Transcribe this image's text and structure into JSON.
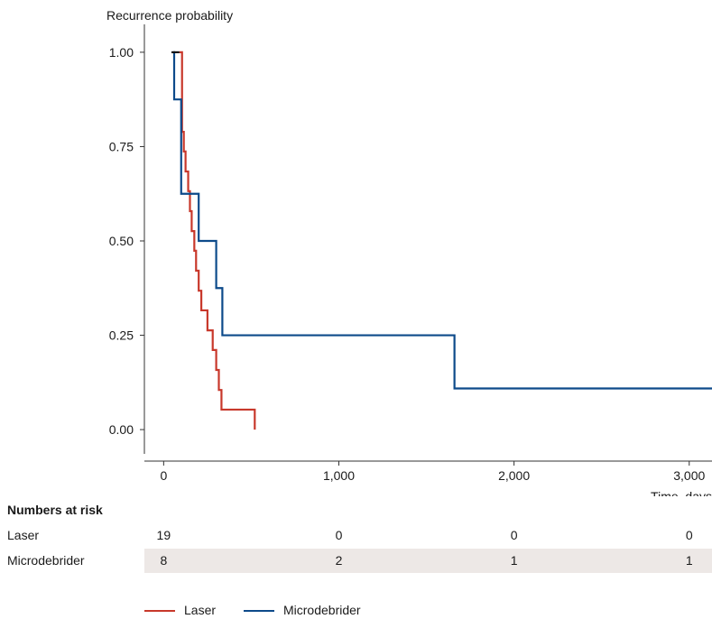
{
  "chart_data": {
    "type": "line",
    "subtype": "step",
    "ylabel": "Recurrence probability",
    "xlabel": "Time, days",
    "xlim": [
      -110,
      3130
    ],
    "ylim": [
      -0.05,
      1.05
    ],
    "xticks": [
      0,
      1000,
      2000,
      3000
    ],
    "xtick_labels": [
      "0",
      "1,000",
      "2,000",
      "3,000"
    ],
    "yticks": [
      0,
      0.25,
      0.5,
      0.75,
      1.0
    ],
    "ytick_labels": [
      "0.00",
      "0.25",
      "0.50",
      "0.75",
      "1.00"
    ],
    "series": [
      {
        "name": "Laser",
        "color": "#c8382b",
        "x": [
          90,
          105,
          115,
          125,
          140,
          150,
          160,
          175,
          185,
          200,
          215,
          250,
          280,
          300,
          315,
          330,
          520
        ],
        "y": [
          1.0,
          0.789,
          0.737,
          0.684,
          0.632,
          0.579,
          0.526,
          0.474,
          0.421,
          0.368,
          0.316,
          0.263,
          0.211,
          0.158,
          0.105,
          0.053,
          0.0
        ]
      },
      {
        "name": "Microdebrider",
        "color": "#0d4a8a",
        "x": [
          55,
          60,
          100,
          110,
          200,
          300,
          335,
          1660,
          3130
        ],
        "y": [
          1.0,
          0.875,
          0.625,
          0.625,
          0.5,
          0.375,
          0.25,
          0.109,
          0.109
        ]
      }
    ],
    "grid": false,
    "legend_position": "bottom"
  },
  "risk_table": {
    "title": "Numbers at risk",
    "times": [
      0,
      1000,
      2000,
      3000
    ],
    "rows": [
      {
        "label": "Laser",
        "values": [
          "19",
          "0",
          "0",
          "0"
        ],
        "shaded": false
      },
      {
        "label": "Microdebrider",
        "values": [
          "8",
          "2",
          "1",
          "1"
        ],
        "shaded": true
      }
    ],
    "shade_color": "#ede8e6"
  },
  "legend": {
    "items": [
      {
        "label": "Laser",
        "color": "#c8382b"
      },
      {
        "label": "Microdebrider",
        "color": "#0d4a8a"
      }
    ]
  }
}
